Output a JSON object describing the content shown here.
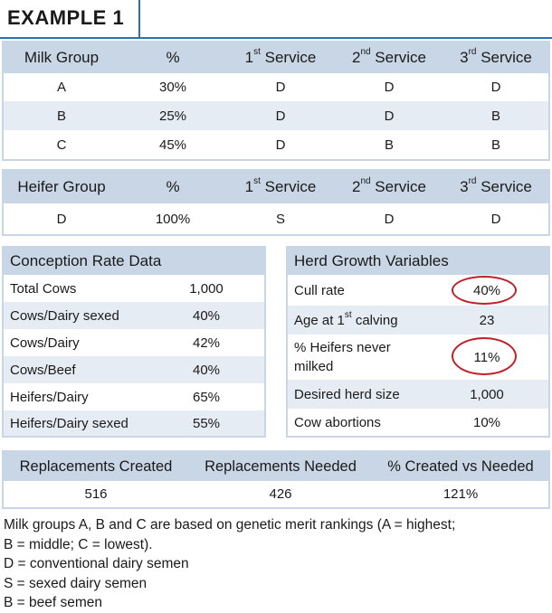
{
  "title": "EXAMPLE 1",
  "milk_table": {
    "headers": {
      "group": "Milk Group",
      "pct": "%",
      "s1_num": "1",
      "s1_sup": "st",
      "s1_word": " Service",
      "s2_num": "2",
      "s2_sup": "nd",
      "s2_word": " Service",
      "s3_num": "3",
      "s3_sup": "rd",
      "s3_word": " Service"
    },
    "rows": [
      {
        "group": "A",
        "pct": "30%",
        "s1": "D",
        "s2": "D",
        "s3": "D"
      },
      {
        "group": "B",
        "pct": "25%",
        "s1": "D",
        "s2": "D",
        "s3": "B"
      },
      {
        "group": "C",
        "pct": "45%",
        "s1": "D",
        "s2": "B",
        "s3": "B"
      }
    ]
  },
  "heifer_table": {
    "headers": {
      "group": "Heifer Group",
      "pct": "%",
      "s1_num": "1",
      "s1_sup": "st",
      "s1_word": " Service",
      "s2_num": "2",
      "s2_sup": "nd",
      "s2_word": " Service",
      "s3_num": "3",
      "s3_sup": "rd",
      "s3_word": " Service"
    },
    "rows": [
      {
        "group": "D",
        "pct": "100%",
        "s1": "S",
        "s2": "D",
        "s3": "D"
      }
    ]
  },
  "conception": {
    "title": "Conception Rate Data",
    "rows": [
      {
        "label": "Total Cows",
        "value": "1,000"
      },
      {
        "label": "Cows/Dairy sexed",
        "value": "40%"
      },
      {
        "label": "Cows/Dairy",
        "value": "42%"
      },
      {
        "label": "Cows/Beef",
        "value": "40%"
      },
      {
        "label": "Heifers/Dairy",
        "value": "65%"
      },
      {
        "label": "Heifers/Dairy sexed",
        "value": "55%"
      }
    ]
  },
  "herd": {
    "title": "Herd Growth Variables",
    "cull_label": "Cull rate",
    "cull_value": "40%",
    "age_label_pre": "Age at 1",
    "age_label_sup": "st",
    "age_label_post": " calving",
    "age_value": "23",
    "never_label_1": "% Heifers never",
    "never_label_2": "milked",
    "never_value": "11%",
    "size_label": "Desired herd size",
    "size_value": "1,000",
    "abort_label": "Cow abortions",
    "abort_value": "10%",
    "circle_color": "#c0202a"
  },
  "replacements": {
    "headers": [
      "Replacements Created",
      "Replacements Needed",
      "% Created vs Needed"
    ],
    "values": [
      "516",
      "426",
      "121%"
    ]
  },
  "notes": [
    "Milk groups A, B and C are based on genetic merit rankings (A = highest;",
    "B = middle; C = lowest).",
    "D = conventional dairy semen",
    "S = sexed dairy semen",
    "B = beef semen"
  ],
  "colors": {
    "accent": "#2f6fae",
    "header_fill": "#c9d6e6",
    "alt_fill": "#e6ecf4"
  }
}
